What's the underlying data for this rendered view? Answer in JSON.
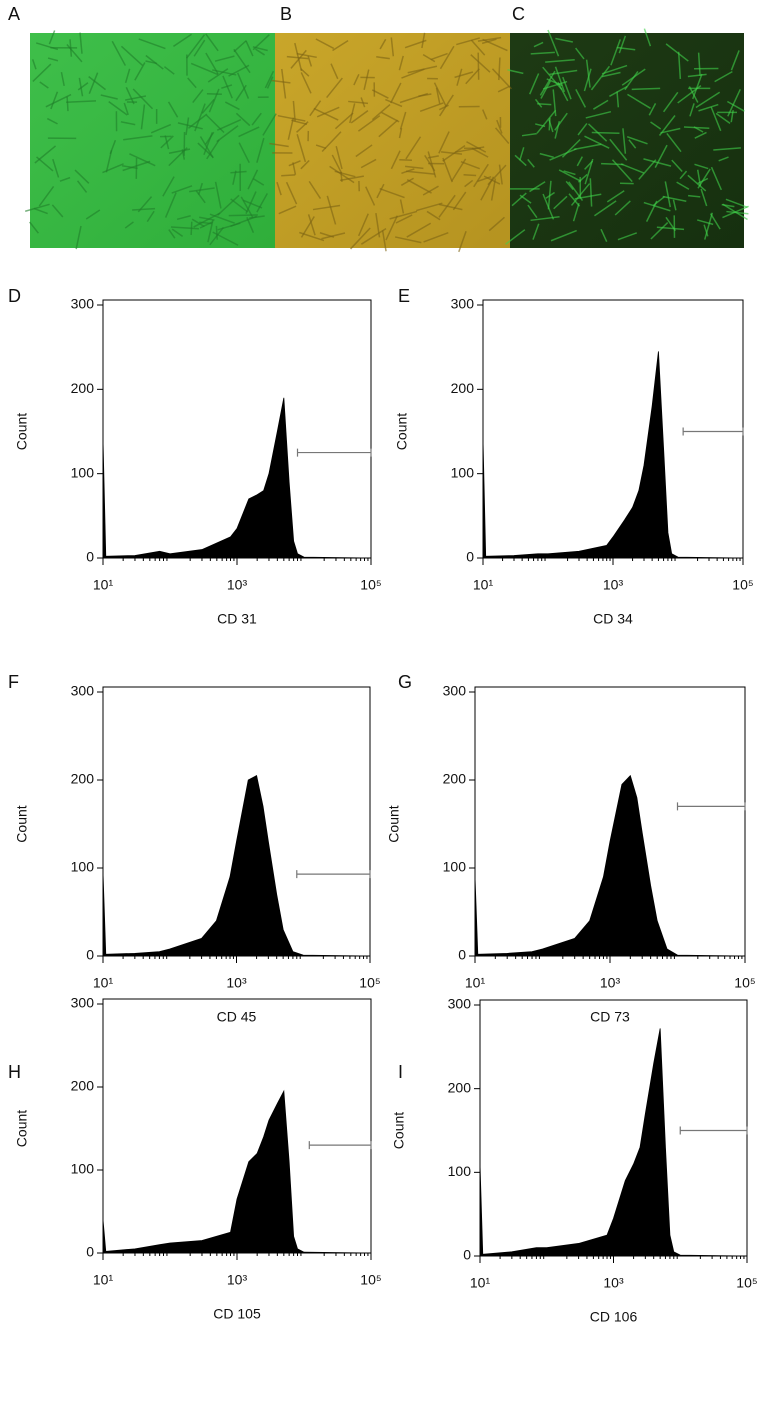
{
  "images": [
    {
      "label": "A"
    },
    {
      "label": "B"
    },
    {
      "label": "C"
    }
  ],
  "chart_data": [
    {
      "type": "histogram",
      "panel": "D",
      "x_label": "CD 31",
      "y_label": "Count",
      "log_x": true,
      "xlim": [
        10,
        100000
      ],
      "xticks": [
        {
          "value": 10,
          "label": "10¹"
        },
        {
          "value": 1000,
          "label": "10³"
        },
        {
          "value": 100000,
          "label": "10⁵"
        }
      ],
      "ylim": [
        0,
        300
      ],
      "yticks": [
        0,
        100,
        200,
        300
      ],
      "color": "#000000",
      "x": [
        10,
        11,
        30,
        70,
        100,
        300,
        800,
        1000,
        1500,
        2000,
        2500,
        3000,
        4000,
        5000,
        6000,
        7000,
        8000,
        10000,
        100000
      ],
      "values": [
        140,
        2,
        3,
        8,
        5,
        10,
        25,
        35,
        70,
        75,
        80,
        100,
        150,
        190,
        90,
        20,
        5,
        1,
        0
      ],
      "gate": {
        "x": [
          8000,
          100000
        ],
        "y": 125
      }
    },
    {
      "type": "histogram",
      "panel": "E",
      "x_label": "CD 34",
      "y_label": "Count",
      "log_x": true,
      "xlim": [
        10,
        100000
      ],
      "xticks": [
        {
          "value": 10,
          "label": "10¹"
        },
        {
          "value": 1000,
          "label": "10³"
        },
        {
          "value": 100000,
          "label": "10⁵"
        }
      ],
      "ylim": [
        0,
        300
      ],
      "yticks": [
        0,
        100,
        200,
        300
      ],
      "color": "#000000",
      "x": [
        10,
        11,
        30,
        70,
        100,
        300,
        800,
        1000,
        1500,
        2000,
        2500,
        3000,
        4000,
        5000,
        6000,
        7000,
        8000,
        10000,
        100000
      ],
      "values": [
        140,
        2,
        3,
        5,
        5,
        8,
        15,
        25,
        45,
        60,
        80,
        110,
        180,
        245,
        130,
        30,
        5,
        1,
        0
      ],
      "gate": {
        "x": [
          12000,
          100000
        ],
        "y": 150
      }
    },
    {
      "type": "histogram",
      "panel": "F",
      "x_label": "CD 45",
      "y_label": "Count",
      "log_x": true,
      "xlim": [
        10,
        100000
      ],
      "xticks": [
        {
          "value": 10,
          "label": "10¹"
        },
        {
          "value": 1000,
          "label": "10³"
        },
        {
          "value": 100000,
          "label": "10⁵"
        }
      ],
      "ylim": [
        0,
        300
      ],
      "yticks": [
        0,
        100,
        200,
        300
      ],
      "color": "#000000",
      "x": [
        10,
        11,
        30,
        70,
        100,
        300,
        500,
        800,
        1000,
        1500,
        2000,
        2500,
        3000,
        4000,
        5000,
        7000,
        10000,
        100000
      ],
      "values": [
        95,
        2,
        3,
        5,
        8,
        20,
        40,
        90,
        130,
        200,
        205,
        170,
        130,
        70,
        30,
        5,
        1,
        0
      ],
      "gate": {
        "x": [
          8000,
          100000
        ],
        "y": 93
      }
    },
    {
      "type": "histogram",
      "panel": "G",
      "x_label": "CD 73",
      "y_label": "Count",
      "log_x": true,
      "xlim": [
        10,
        100000
      ],
      "xticks": [
        {
          "value": 10,
          "label": "10¹"
        },
        {
          "value": 1000,
          "label": "10³"
        },
        {
          "value": 100000,
          "label": "10⁵"
        }
      ],
      "ylim": [
        0,
        300
      ],
      "yticks": [
        0,
        100,
        200,
        300
      ],
      "color": "#000000",
      "x": [
        10,
        11,
        30,
        70,
        100,
        300,
        500,
        800,
        1000,
        1500,
        2000,
        2500,
        3000,
        4000,
        5000,
        7000,
        10000,
        100000
      ],
      "values": [
        90,
        2,
        3,
        5,
        8,
        20,
        40,
        90,
        130,
        195,
        205,
        180,
        140,
        80,
        40,
        8,
        1,
        0
      ],
      "gate": {
        "x": [
          10000,
          100000
        ],
        "y": 170
      }
    },
    {
      "type": "histogram",
      "panel": "H",
      "x_label": "CD 105",
      "y_label": "Count",
      "log_x": true,
      "xlim": [
        10,
        100000
      ],
      "xticks": [
        {
          "value": 10,
          "label": "10¹"
        },
        {
          "value": 1000,
          "label": "10³"
        },
        {
          "value": 100000,
          "label": "10⁵"
        }
      ],
      "ylim": [
        0,
        300
      ],
      "yticks": [
        0,
        100,
        200,
        300
      ],
      "color": "#000000",
      "x": [
        10,
        11,
        30,
        70,
        100,
        300,
        800,
        1000,
        1500,
        2000,
        2500,
        3000,
        4000,
        5000,
        6000,
        7000,
        8000,
        10000,
        100000
      ],
      "values": [
        40,
        2,
        5,
        10,
        12,
        15,
        25,
        65,
        110,
        120,
        140,
        160,
        180,
        195,
        110,
        20,
        5,
        1,
        0
      ],
      "gate": {
        "x": [
          12000,
          100000
        ],
        "y": 130
      }
    },
    {
      "type": "histogram",
      "panel": "I",
      "x_label": "CD 106",
      "y_label": "Count",
      "log_x": true,
      "xlim": [
        10,
        100000
      ],
      "xticks": [
        {
          "value": 10,
          "label": "10¹"
        },
        {
          "value": 1000,
          "label": "10³"
        },
        {
          "value": 100000,
          "label": "10⁵"
        }
      ],
      "ylim": [
        0,
        300
      ],
      "yticks": [
        0,
        100,
        200,
        300
      ],
      "color": "#000000",
      "x": [
        10,
        11,
        30,
        70,
        100,
        300,
        800,
        1000,
        1500,
        2000,
        2500,
        3000,
        4000,
        5000,
        6000,
        7000,
        8000,
        10000,
        100000
      ],
      "values": [
        110,
        2,
        5,
        10,
        10,
        15,
        25,
        45,
        90,
        110,
        130,
        170,
        230,
        272,
        130,
        25,
        5,
        1,
        0
      ],
      "gate": {
        "x": [
          10000,
          100000
        ],
        "y": 150
      }
    }
  ]
}
